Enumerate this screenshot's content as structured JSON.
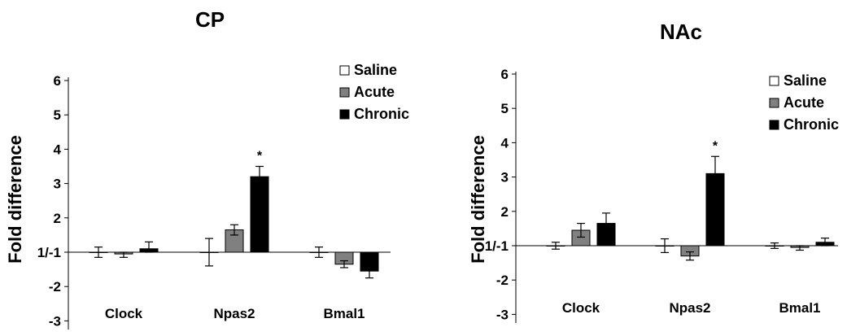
{
  "chart_data": [
    {
      "type": "bar",
      "title": "CP",
      "ylabel": "Fold difference",
      "ylim": [
        -3,
        6
      ],
      "yticks": [
        "-3",
        "-2",
        "1/-1",
        "2",
        "3",
        "4",
        "5",
        "6"
      ],
      "categories": [
        "Clock",
        "Npas2",
        "Bmal1"
      ],
      "series": [
        {
          "name": "Saline",
          "color": "#ffffff",
          "values": [
            1.0,
            1.0,
            1.0
          ],
          "errors": [
            0.15,
            0.4,
            0.15
          ]
        },
        {
          "name": "Acute",
          "color": "#808080",
          "values": [
            -1.05,
            1.65,
            -1.35
          ],
          "errors": [
            0.1,
            0.15,
            0.1
          ]
        },
        {
          "name": "Chronic",
          "color": "#000000",
          "values": [
            1.1,
            3.2,
            -1.55
          ],
          "errors": [
            0.2,
            0.3,
            0.2
          ]
        }
      ],
      "annotations": [
        {
          "text": "*",
          "category": "Npas2",
          "series": "Chronic"
        }
      ],
      "legend": "top-right"
    },
    {
      "type": "bar",
      "title": "NAc",
      "ylabel": "Fold difference",
      "ylim": [
        -3,
        6
      ],
      "yticks": [
        "-3",
        "-2",
        "1/-1",
        "2",
        "3",
        "4",
        "5",
        "6"
      ],
      "categories": [
        "Clock",
        "Npas2",
        "Bmal1"
      ],
      "series": [
        {
          "name": "Saline",
          "color": "#ffffff",
          "values": [
            1.0,
            1.0,
            1.0
          ],
          "errors": [
            0.1,
            0.2,
            0.08
          ]
        },
        {
          "name": "Acute",
          "color": "#808080",
          "values": [
            1.45,
            -1.3,
            -1.05
          ],
          "errors": [
            0.2,
            0.12,
            0.08
          ]
        },
        {
          "name": "Chronic",
          "color": "#000000",
          "values": [
            1.65,
            3.1,
            1.1
          ],
          "errors": [
            0.3,
            0.5,
            0.12
          ]
        }
      ],
      "annotations": [
        {
          "text": "*",
          "category": "Npas2",
          "series": "Chronic"
        }
      ],
      "legend": "top-right"
    }
  ]
}
